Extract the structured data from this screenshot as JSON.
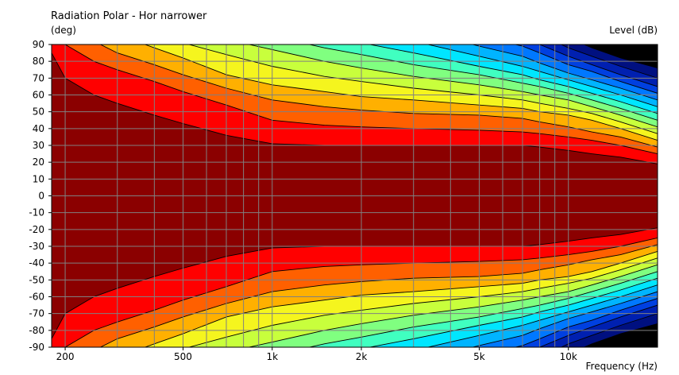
{
  "chart_data": {
    "type": "heatmap",
    "title": "Radiation Polar - Hor narrower",
    "ylabel": "(deg)",
    "zlabel": "Level  (dB)",
    "xlabel": "Frequency  (Hz)",
    "x_scale": "log",
    "xlim": [
      180,
      20000
    ],
    "ylim": [
      -90,
      90
    ],
    "grid": true,
    "y_ticks": [
      90,
      80,
      70,
      60,
      50,
      40,
      30,
      20,
      10,
      0,
      -10,
      -20,
      -30,
      -40,
      -50,
      -60,
      -70,
      -80,
      -90
    ],
    "x_tick_labels": [
      {
        "value": 200,
        "label": "200"
      },
      {
        "value": 500,
        "label": "500"
      },
      {
        "value": 1000,
        "label": "1k"
      },
      {
        "value": 2000,
        "label": "2k"
      },
      {
        "value": 5000,
        "label": "5k"
      },
      {
        "value": 10000,
        "label": "10k"
      }
    ],
    "x_grid": [
      200,
      300,
      400,
      500,
      600,
      700,
      800,
      900,
      1000,
      2000,
      3000,
      4000,
      5000,
      6000,
      7000,
      8000,
      9000,
      10000,
      20000
    ],
    "contour_colors": [
      "#8b0000",
      "#ff0000",
      "#ff6000",
      "#ffb000",
      "#f5f51e",
      "#c8ff3c",
      "#80ff80",
      "#40ffc0",
      "#00e6ff",
      "#00b4ff",
      "#0078ff",
      "#0040e0",
      "#0020b0",
      "#001080",
      "#000000"
    ],
    "contour_boundaries_deg": {
      "frequencies_hz": [
        180,
        200,
        250,
        300,
        400,
        500,
        700,
        1000,
        1500,
        2000,
        3000,
        5000,
        7000,
        8000,
        10000,
        12000,
        15000,
        20000
      ],
      "levels": [
        [
          85,
          70,
          60,
          55,
          48,
          43,
          36,
          31,
          30,
          30,
          30,
          30,
          30,
          29,
          27,
          25,
          23,
          19
        ],
        [
          95,
          90,
          80,
          75,
          68,
          62,
          54,
          45,
          42,
          41,
          40,
          39,
          38,
          37,
          35,
          33,
          30,
          25
        ],
        [
          99,
          99,
          92,
          85,
          78,
          72,
          64,
          57,
          53,
          51,
          49,
          48,
          46,
          44,
          41,
          38,
          35,
          29
        ],
        [
          99,
          99,
          99,
          96,
          88,
          82,
          72,
          66,
          62,
          59,
          57,
          54,
          52,
          50,
          48,
          45,
          40,
          33
        ],
        [
          99,
          99,
          99,
          99,
          95,
          91,
          84,
          77,
          71,
          68,
          64,
          60,
          57,
          55,
          52,
          49,
          44,
          37
        ],
        [
          99,
          99,
          99,
          99,
          99,
          98,
          93,
          87,
          80,
          76,
          71,
          66,
          62,
          60,
          57,
          53,
          48,
          41
        ],
        [
          99,
          99,
          99,
          99,
          99,
          99,
          99,
          95,
          88,
          84,
          78,
          72,
          67,
          65,
          61,
          57,
          52,
          45
        ],
        [
          99,
          99,
          99,
          99,
          99,
          99,
          99,
          99,
          96,
          91,
          85,
          77,
          72,
          69,
          65,
          61,
          56,
          49
        ],
        [
          99,
          99,
          99,
          99,
          99,
          99,
          99,
          99,
          99,
          98,
          92,
          83,
          77,
          74,
          69,
          65,
          60,
          53
        ],
        [
          99,
          99,
          99,
          99,
          99,
          99,
          99,
          99,
          99,
          99,
          99,
          89,
          83,
          79,
          73,
          69,
          64,
          57
        ],
        [
          99,
          99,
          99,
          99,
          99,
          99,
          99,
          99,
          99,
          99,
          99,
          95,
          89,
          85,
          78,
          74,
          68,
          61
        ],
        [
          99,
          99,
          99,
          99,
          99,
          99,
          99,
          99,
          99,
          99,
          99,
          99,
          94,
          90,
          83,
          78,
          72,
          65
        ],
        [
          99,
          99,
          99,
          99,
          99,
          99,
          99,
          99,
          99,
          99,
          99,
          99,
          99,
          96,
          88,
          83,
          77,
          70
        ],
        [
          99,
          99,
          99,
          99,
          99,
          99,
          99,
          99,
          99,
          99,
          99,
          99,
          99,
          99,
          94,
          88,
          82,
          76
        ]
      ]
    }
  }
}
